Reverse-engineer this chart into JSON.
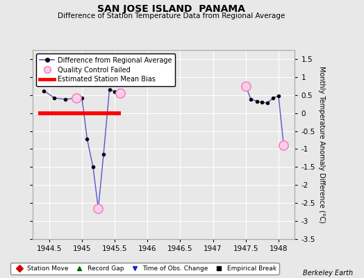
{
  "title": "SAN JOSE ISLAND  PANAMA",
  "subtitle": "Difference of Station Temperature Data from Regional Average",
  "ylabel": "Monthly Temperature Anomaly Difference (°C)",
  "background_color": "#e8e8e8",
  "plot_bg_color": "#e8e8e8",
  "xlim": [
    1944.25,
    1948.25
  ],
  "ylim": [
    -3.5,
    1.75
  ],
  "yticks": [
    -3.5,
    -3.0,
    -2.5,
    -2.0,
    -1.5,
    -1.0,
    -0.5,
    0.0,
    0.5,
    1.0,
    1.5
  ],
  "xticks": [
    1944.5,
    1945.0,
    1945.5,
    1946.0,
    1946.5,
    1947.0,
    1947.5,
    1948.0
  ],
  "seg1_x": [
    1944.42,
    1944.58,
    1944.75,
    1944.92,
    1945.0,
    1945.08,
    1945.17,
    1945.25,
    1945.33,
    1945.42,
    1945.5,
    1945.58
  ],
  "seg1_y": [
    0.62,
    0.42,
    0.38,
    0.42,
    0.42,
    -0.72,
    -1.5,
    -2.65,
    -1.15,
    0.65,
    0.6,
    0.55
  ],
  "seg2_x": [
    1947.5,
    1947.58,
    1947.67,
    1947.75,
    1947.83,
    1947.92,
    1948.0,
    1948.08
  ],
  "seg2_y": [
    0.75,
    0.38,
    0.33,
    0.3,
    0.28,
    0.42,
    0.48,
    -0.9
  ],
  "qc_failed_x": [
    1944.92,
    1945.25,
    1945.58,
    1947.5,
    1948.08
  ],
  "qc_failed_y": [
    0.42,
    -2.65,
    0.55,
    0.75,
    -0.9
  ],
  "bias_x_start": 1944.33,
  "bias_x_end": 1945.6,
  "bias_y": 0.0,
  "line_color": "#5555cc",
  "marker_color": "#000000",
  "qc_face_color": "#ffccee",
  "qc_edge_color": "#ee88bb",
  "bias_color": "#ff0000",
  "footer_text": "Berkeley Earth",
  "legend_line_label": "Difference from Regional Average",
  "legend_qc_label": "Quality Control Failed",
  "legend_bias_label": "Estimated Station Mean Bias",
  "bottom_legend": [
    {
      "label": "Station Move",
      "color": "#cc0000",
      "marker": "D"
    },
    {
      "label": "Record Gap",
      "color": "#006600",
      "marker": "^"
    },
    {
      "label": "Time of Obs. Change",
      "color": "#2222cc",
      "marker": "v"
    },
    {
      "label": "Empirical Break",
      "color": "#000000",
      "marker": "s"
    }
  ]
}
